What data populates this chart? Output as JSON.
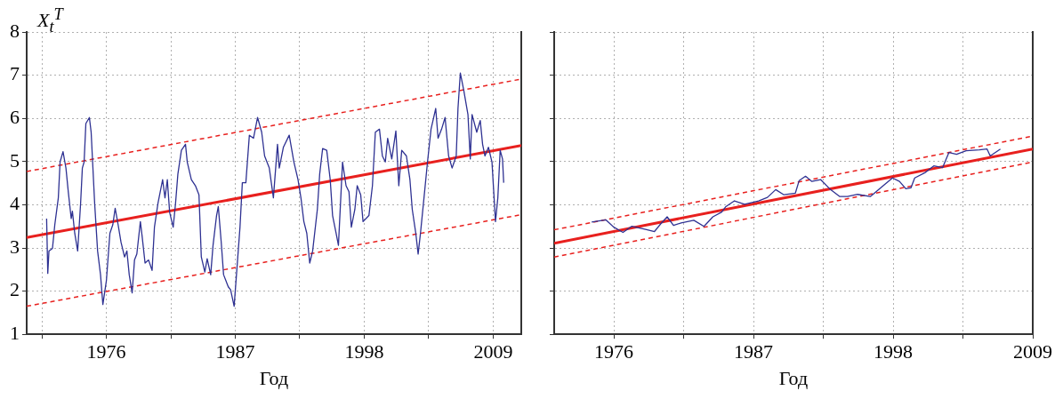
{
  "chart_data": [
    {
      "type": "line",
      "ylabel": "X$_{t}$$^{T}$",
      "xlabel": "Год",
      "xlim": [
        1969.2,
        2011.4
      ],
      "ylim": [
        1,
        8
      ],
      "xticks": [
        {
          "value": 1970.5,
          "label": null
        },
        1976,
        {
          "value": 1981.5,
          "label": null
        },
        1987,
        {
          "value": 1992.5,
          "label": null
        },
        1998,
        {
          "value": 2003.5,
          "label": null
        },
        2009
      ],
      "yticks": [
        1,
        2,
        3,
        4,
        5,
        6,
        7,
        8
      ],
      "grid": true,
      "legend": false,
      "marker": "none",
      "series": [
        {
          "color": "#2e3192",
          "line_style": "solid",
          "x": [
            1970.9,
            1971.0,
            1971.1,
            1971.4,
            1971.6,
            1971.9,
            1972.05,
            1972.3,
            1972.55,
            1972.75,
            1973.0,
            1973.1,
            1973.3,
            1973.55,
            1973.8,
            1973.95,
            1974.1,
            1974.25,
            1974.55,
            1974.7,
            1975.0,
            1975.25,
            1975.5,
            1975.7,
            1976.0,
            1976.3,
            1976.55,
            1976.75,
            1977.0,
            1977.25,
            1977.55,
            1977.75,
            1977.95,
            1978.2,
            1978.4,
            1978.6,
            1978.9,
            1979.05,
            1979.3,
            1979.6,
            1979.9,
            1980.1,
            1980.4,
            1980.8,
            1981.0,
            1981.2,
            1981.4,
            1981.7,
            1981.9,
            1982.1,
            1982.4,
            1982.75,
            1982.9,
            1983.25,
            1983.6,
            1983.9,
            1984.1,
            1984.4,
            1984.6,
            1984.9,
            1985.1,
            1985.4,
            1985.55,
            1985.8,
            1986.0,
            1986.4,
            1986.6,
            1986.9,
            1987.1,
            1987.4,
            1987.6,
            1987.9,
            1988.2,
            1988.55,
            1988.9,
            1989.25,
            1989.5,
            1989.9,
            1990.25,
            1990.6,
            1990.75,
            1991.1,
            1991.6,
            1992.0,
            1992.35,
            1992.6,
            1992.85,
            1993.1,
            1993.35,
            1993.6,
            1994.0,
            1994.2,
            1994.45,
            1994.8,
            1995.1,
            1995.3,
            1995.6,
            1995.8,
            1996.15,
            1996.45,
            1996.7,
            1996.9,
            1997.2,
            1997.4,
            1997.7,
            1997.9,
            1998.4,
            1998.7,
            1998.95,
            1999.3,
            1999.55,
            1999.8,
            2000.0,
            2000.35,
            2000.7,
            2000.95,
            2001.2,
            2001.6,
            2001.9,
            2002.1,
            2002.4,
            2002.6,
            2002.8,
            2003.1,
            2003.4,
            2003.7,
            2004.1,
            2004.3,
            2004.6,
            2004.9,
            2005.2,
            2005.5,
            2005.85,
            2006.0,
            2006.2,
            2006.5,
            2006.85,
            2007.05,
            2007.2,
            2007.6,
            2007.9,
            2008.1,
            2008.3,
            2008.6,
            2008.9,
            2009.2,
            2009.4,
            2009.6,
            2009.8,
            2009.9
          ],
          "values": [
            3.68,
            2.41,
            2.93,
            2.99,
            3.54,
            4.16,
            4.99,
            5.23,
            4.85,
            4.3,
            3.68,
            3.85,
            3.34,
            2.93,
            4.03,
            4.85,
            4.99,
            5.88,
            6.02,
            5.68,
            4.03,
            2.93,
            2.38,
            1.69,
            2.24,
            3.34,
            3.54,
            3.92,
            3.54,
            3.13,
            2.79,
            2.93,
            2.38,
            1.96,
            2.72,
            2.86,
            3.61,
            3.27,
            2.65,
            2.72,
            2.48,
            3.48,
            4.03,
            4.58,
            4.16,
            4.58,
            3.82,
            3.48,
            4.03,
            4.71,
            5.26,
            5.4,
            4.99,
            4.58,
            4.44,
            4.23,
            2.79,
            2.44,
            2.75,
            2.38,
            3.06,
            3.75,
            3.96,
            3.13,
            2.38,
            2.1,
            2.03,
            1.65,
            2.38,
            3.48,
            4.51,
            4.51,
            5.61,
            5.54,
            6.02,
            5.68,
            5.13,
            4.85,
            4.16,
            5.4,
            4.85,
            5.33,
            5.61,
            4.99,
            4.58,
            4.16,
            3.61,
            3.34,
            2.65,
            2.93,
            3.89,
            4.71,
            5.3,
            5.26,
            4.58,
            3.75,
            3.34,
            3.06,
            4.99,
            4.44,
            4.3,
            3.48,
            3.89,
            4.44,
            4.23,
            3.61,
            3.75,
            4.44,
            5.68,
            5.75,
            5.13,
            4.99,
            5.54,
            5.06,
            5.71,
            4.44,
            5.26,
            5.13,
            4.58,
            3.89,
            3.34,
            2.86,
            3.34,
            4.16,
            4.99,
            5.75,
            6.23,
            5.54,
            5.75,
            6.02,
            5.13,
            4.85,
            5.13,
            6.23,
            7.05,
            6.64,
            6.09,
            5.06,
            6.09,
            5.68,
            5.95,
            5.4,
            5.13,
            5.33,
            4.99,
            3.61,
            4.16,
            5.26,
            5.06,
            4.51
          ]
        },
        {
          "color": "#e8201e",
          "line_style": "solid",
          "x": [
            1969.2,
            2011.4
          ],
          "values": [
            3.24,
            5.37
          ]
        },
        {
          "color": "#e8201e",
          "line_style": "dashed",
          "x": [
            1969.2,
            2011.4
          ],
          "values": [
            4.77,
            6.91
          ]
        },
        {
          "color": "#e8201e",
          "line_style": "dashed",
          "x": [
            1969.2,
            2011.4
          ],
          "values": [
            1.65,
            3.77
          ]
        }
      ]
    },
    {
      "type": "line",
      "xlabel": "Год",
      "xlim": [
        1971.3,
        2009
      ],
      "ylim": [
        1,
        8
      ],
      "xticks": [
        1976,
        {
          "value": 1981.5,
          "label": null
        },
        1987,
        {
          "value": 1992.5,
          "label": null
        },
        1998,
        {
          "value": 2003.5,
          "label": null
        },
        2009
      ],
      "yticks": [
        1,
        2,
        3,
        4,
        5,
        6,
        7,
        8
      ],
      "tick_labels": "x",
      "grid": true,
      "legend": false,
      "marker": "none",
      "series": [
        {
          "color": "#2e3192",
          "line_style": "solid",
          "x": [
            1974.25,
            1975.38,
            1976.0,
            1976.72,
            1977.4,
            1978.5,
            1979.2,
            1979.7,
            1980.2,
            1980.7,
            1981.3,
            1982.3,
            1983.1,
            1983.8,
            1984.5,
            1984.8,
            1985.5,
            1986.3,
            1987.4,
            1988.1,
            1988.75,
            1989.4,
            1990.3,
            1990.6,
            1991.1,
            1991.6,
            1992.3,
            1993.0,
            1993.8,
            1994.4,
            1995.2,
            1996.2,
            1996.7,
            1997.3,
            1997.95,
            1998.5,
            1999.0,
            1999.4,
            1999.7,
            2000.5,
            2001.2,
            2001.9,
            2002.4,
            2003.0,
            2003.75,
            2004.8,
            2005.4,
            2005.65,
            2006.45
          ],
          "values": [
            3.6,
            3.65,
            3.48,
            3.36,
            3.5,
            3.43,
            3.38,
            3.56,
            3.72,
            3.52,
            3.58,
            3.64,
            3.5,
            3.72,
            3.83,
            3.95,
            4.09,
            4.01,
            4.09,
            4.17,
            4.35,
            4.23,
            4.27,
            4.56,
            4.66,
            4.54,
            4.58,
            4.37,
            4.19,
            4.19,
            4.24,
            4.19,
            4.31,
            4.46,
            4.62,
            4.54,
            4.37,
            4.39,
            4.62,
            4.74,
            4.9,
            4.86,
            5.21,
            5.17,
            5.25,
            5.27,
            5.29,
            5.13,
            5.29
          ]
        },
        {
          "color": "#e8201e",
          "line_style": "solid",
          "x": [
            1971.3,
            2009
          ],
          "values": [
            3.11,
            5.29
          ]
        },
        {
          "color": "#e8201e",
          "line_style": "dashed",
          "x": [
            1971.3,
            2009
          ],
          "values": [
            3.42,
            5.59
          ]
        },
        {
          "color": "#e8201e",
          "line_style": "dashed",
          "x": [
            1971.3,
            2009
          ],
          "values": [
            2.79,
            4.99
          ]
        }
      ]
    }
  ]
}
